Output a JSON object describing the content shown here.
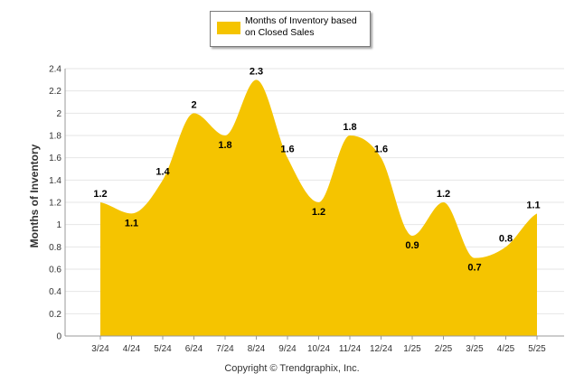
{
  "chart_data": {
    "type": "area",
    "categories": [
      "3/24",
      "4/24",
      "5/24",
      "6/24",
      "7/24",
      "8/24",
      "9/24",
      "10/24",
      "11/24",
      "12/24",
      "1/25",
      "2/25",
      "3/25",
      "4/25",
      "5/25"
    ],
    "series": [
      {
        "name": "Months of Inventory based on Closed Sales",
        "values": [
          1.2,
          1.1,
          1.4,
          2,
          1.8,
          2.3,
          1.6,
          1.2,
          1.8,
          1.6,
          0.9,
          1.2,
          0.7,
          0.8,
          1.1
        ],
        "value_labels": [
          "1.2",
          "1.1",
          "1.4",
          "2",
          "1.8",
          "2.3",
          "1.6",
          "1.2",
          "1.8",
          "1.6",
          "0.9",
          "1.2",
          "0.7",
          "0.8",
          "1.1"
        ]
      }
    ],
    "ylabel": "Months of Inventory",
    "ylim": [
      0,
      2.4
    ],
    "yticks": [
      "0",
      "0.2",
      "0.4",
      "0.6",
      "0.8",
      "1",
      "1.2",
      "1.4",
      "1.6",
      "1.8",
      "2",
      "2.2",
      "2.4"
    ],
    "grid": true,
    "legend_position": "top-center",
    "colors": {
      "area": "#F5C400",
      "grid": "#e6e6e6",
      "axis": "#999999"
    }
  },
  "legend": {
    "label": "Months of Inventory based on Closed Sales"
  },
  "footer": {
    "copyright": "Copyright © Trendgraphix, Inc."
  }
}
